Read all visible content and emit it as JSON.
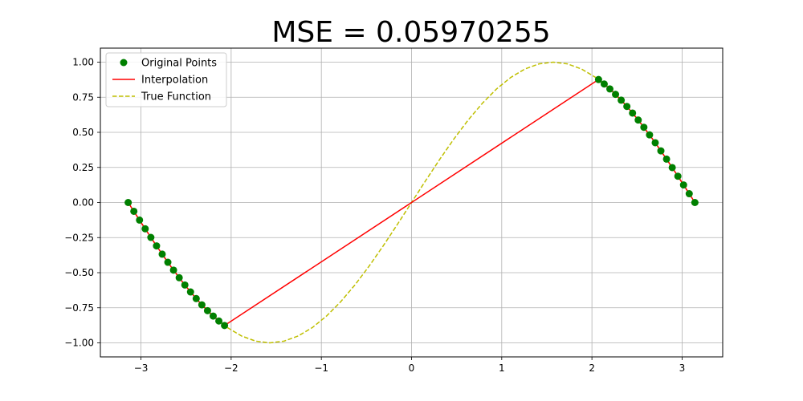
{
  "chart_data": {
    "type": "line",
    "title": "MSE = 0.05970255",
    "xlim": [
      -3.45,
      3.45
    ],
    "ylim": [
      -1.1,
      1.1
    ],
    "x_ticks": [
      -3,
      -2,
      -1,
      0,
      1,
      2,
      3
    ],
    "x_tick_labels": [
      "−3",
      "−2",
      "−1",
      "0",
      "1",
      "2",
      "3"
    ],
    "y_ticks": [
      -1.0,
      -0.75,
      -0.5,
      -0.25,
      0.0,
      0.25,
      0.5,
      0.75,
      1.0
    ],
    "y_tick_labels": [
      "−1.00",
      "−0.75",
      "−0.50",
      "−0.25",
      "0.00",
      "0.25",
      "0.50",
      "0.75",
      "1.00"
    ],
    "grid": true,
    "legend_position": "top-left",
    "legend": [
      {
        "label": "Original Points",
        "kind": "marker",
        "color": "#008000"
      },
      {
        "label": "Interpolation",
        "kind": "line",
        "color": "#ff0000"
      },
      {
        "label": "True Function",
        "kind": "dashed",
        "color": "#bfbf00"
      }
    ],
    "series": [
      {
        "name": "Original Points",
        "kind": "scatter",
        "color": "#008000",
        "x": [
          -3.1416,
          -3.0788,
          -3.0159,
          -2.9531,
          -2.8903,
          -2.8274,
          -2.7646,
          -2.7018,
          -2.6389,
          -2.5761,
          -2.5133,
          -2.4504,
          -2.3876,
          -2.3248,
          -2.2619,
          -2.1991,
          -2.1363,
          -2.0735,
          2.0735,
          2.1363,
          2.1991,
          2.2619,
          2.3248,
          2.3876,
          2.4504,
          2.5133,
          2.5761,
          2.6389,
          2.7018,
          2.7646,
          2.8274,
          2.8903,
          2.9531,
          3.0159,
          3.0788,
          3.1416
        ],
        "y": [
          0.0,
          -0.0628,
          -0.1253,
          -0.1874,
          -0.2487,
          -0.309,
          -0.3681,
          -0.4258,
          -0.4818,
          -0.5358,
          -0.5878,
          -0.6374,
          -0.6845,
          -0.729,
          -0.7705,
          -0.809,
          -0.8443,
          -0.8763,
          0.8763,
          0.8443,
          0.809,
          0.7705,
          0.729,
          0.6845,
          0.6374,
          0.5878,
          0.5358,
          0.4818,
          0.4258,
          0.3681,
          0.309,
          0.2487,
          0.1874,
          0.1253,
          0.0628,
          0.0
        ]
      },
      {
        "name": "Interpolation",
        "kind": "line",
        "color": "#ff0000",
        "x": [
          -3.1416,
          -3.0788,
          -3.0159,
          -2.9531,
          -2.8903,
          -2.8274,
          -2.7646,
          -2.7018,
          -2.6389,
          -2.5761,
          -2.5133,
          -2.4504,
          -2.3876,
          -2.3248,
          -2.2619,
          -2.1991,
          -2.1363,
          -2.0735,
          2.0735,
          2.1363,
          2.1991,
          2.2619,
          2.3248,
          2.3876,
          2.4504,
          2.5133,
          2.5761,
          2.6389,
          2.7018,
          2.7646,
          2.8274,
          2.8903,
          2.9531,
          3.0159,
          3.0788,
          3.1416
        ],
        "y": [
          0.0,
          -0.0628,
          -0.1253,
          -0.1874,
          -0.2487,
          -0.309,
          -0.3681,
          -0.4258,
          -0.4818,
          -0.5358,
          -0.5878,
          -0.6374,
          -0.6845,
          -0.729,
          -0.7705,
          -0.809,
          -0.8443,
          -0.8763,
          0.8763,
          0.8443,
          0.809,
          0.7705,
          0.729,
          0.6845,
          0.6374,
          0.5878,
          0.5358,
          0.4818,
          0.4258,
          0.3681,
          0.309,
          0.2487,
          0.1874,
          0.1253,
          0.0628,
          0.0
        ]
      },
      {
        "name": "True Function",
        "kind": "dashed",
        "color": "#bfbf00",
        "x": [
          -3.1416,
          -2.9845,
          -2.8274,
          -2.6704,
          -2.5133,
          -2.3562,
          -2.1991,
          -2.042,
          -1.885,
          -1.7279,
          -1.5708,
          -1.4137,
          -1.2566,
          -1.0996,
          -0.9425,
          -0.7854,
          -0.6283,
          -0.4712,
          -0.3142,
          -0.1571,
          0.0,
          0.1571,
          0.3142,
          0.4712,
          0.6283,
          0.7854,
          0.9425,
          1.0996,
          1.2566,
          1.4137,
          1.5708,
          1.7279,
          1.885,
          2.042,
          2.1991,
          2.3562,
          2.5133,
          2.6704,
          2.8274,
          2.9845,
          3.1416
        ],
        "y": [
          0.0,
          -0.1564,
          -0.309,
          -0.454,
          -0.5878,
          -0.7071,
          -0.809,
          -0.891,
          -0.9511,
          -0.9877,
          -1.0,
          -0.9877,
          -0.9511,
          -0.891,
          -0.809,
          -0.7071,
          -0.5878,
          -0.454,
          -0.309,
          -0.1564,
          0.0,
          0.1564,
          0.309,
          0.454,
          0.5878,
          0.7071,
          0.809,
          0.891,
          0.9511,
          0.9877,
          1.0,
          0.9877,
          0.9511,
          0.891,
          0.809,
          0.7071,
          0.5878,
          0.454,
          0.309,
          0.1564,
          0.0
        ]
      }
    ]
  }
}
